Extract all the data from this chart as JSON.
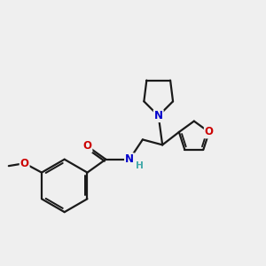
{
  "bg_color": "#efefef",
  "bond_color": "#1a1a1a",
  "N_color": "#0000cc",
  "O_color": "#cc0000",
  "H_color": "#4aa",
  "line_width": 1.6,
  "font_size_atom": 8.5,
  "xlim": [
    0,
    10
  ],
  "ylim": [
    0,
    10
  ]
}
